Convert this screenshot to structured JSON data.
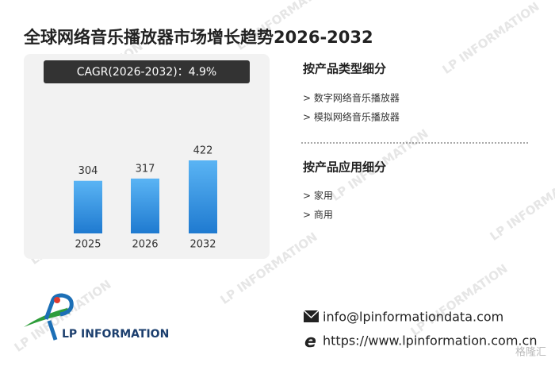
{
  "chart_data": {
    "type": "bar",
    "title": "全球网络音乐播放器市场增长趋势2026-2032",
    "annotation": "CAGR(2026-2032)：4.9%",
    "categories": [
      "2025",
      "2026",
      "2032"
    ],
    "values": [
      304,
      317,
      422
    ],
    "color": "#1f7ad0"
  },
  "segments": [
    {
      "title": "按产品类型细分",
      "items": [
        "> 数字网络音乐播放器",
        "> 模拟网络音乐播放器"
      ]
    },
    {
      "title": "按产品应用细分",
      "items": [
        "> 家用",
        "> 商用"
      ]
    }
  ],
  "logo": "LP INFORMATION",
  "contact": {
    "email": "info@lpinformationdata.com",
    "website": "https://www.lpinformation.com.cn"
  },
  "watermark": "LP INFORMATION",
  "source_mark": "格隆汇"
}
